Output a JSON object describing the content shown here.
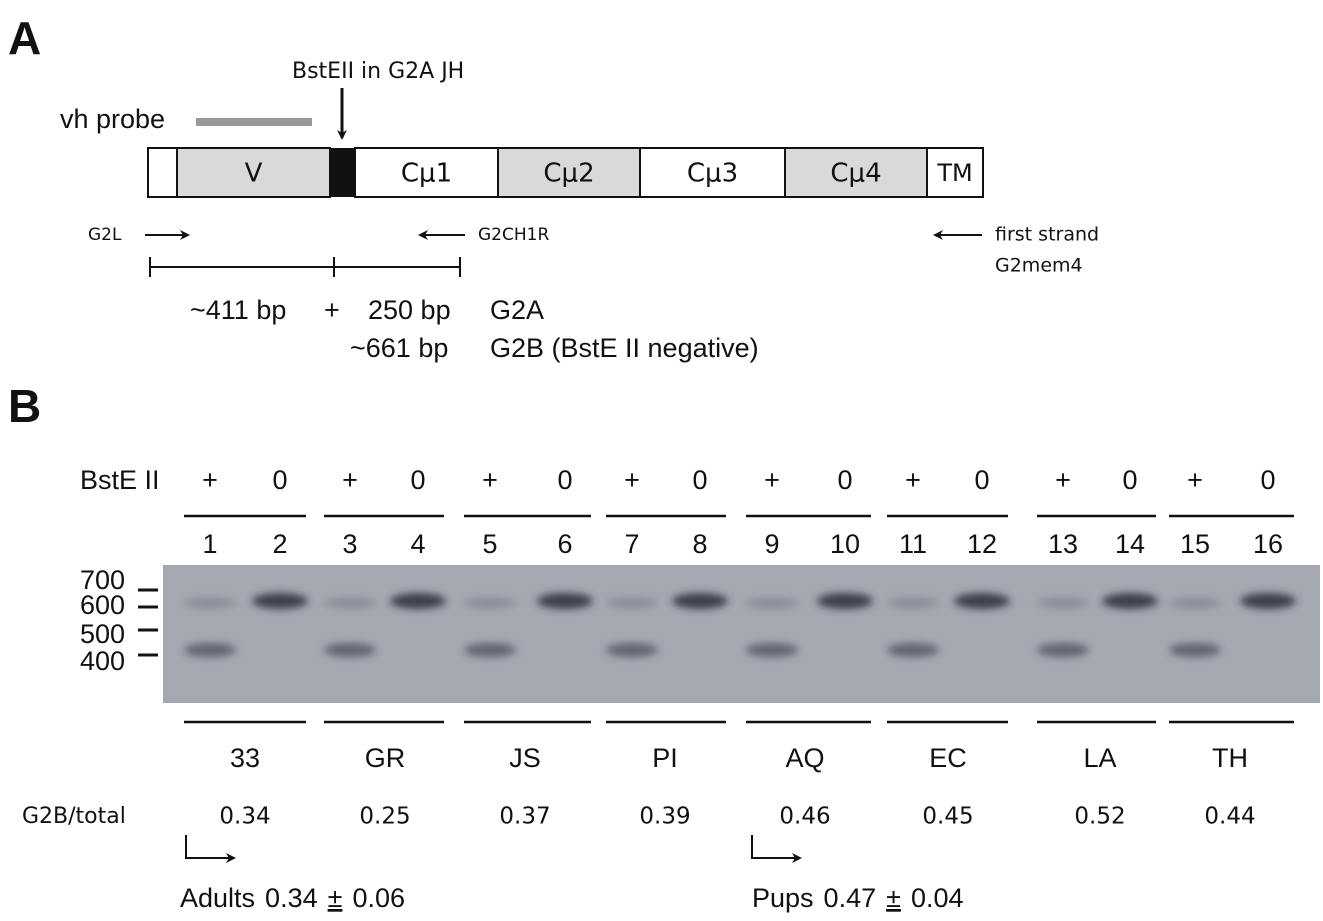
{
  "panel_a": {
    "label": "A",
    "site_label": "BstEII in G2A JH",
    "probe_label": "vh probe",
    "segments": [
      "V",
      "Cμ1",
      "Cμ2",
      "Cμ3",
      "Cμ4",
      "TM"
    ],
    "primers": {
      "forward": "G2L",
      "reverse": "G2CH1R",
      "first_strand": [
        "first strand",
        "G2mem4"
      ]
    },
    "sizes": {
      "left": "~411 bp",
      "plus": "+",
      "right": "250 bp",
      "g2a": "G2A",
      "full": "~661 bp",
      "g2b": "G2B (BstE II negative)"
    }
  },
  "panel_b": {
    "label": "B",
    "enzyme_label": "BstE II",
    "treatments": [
      "+",
      "0",
      "+",
      "0",
      "+",
      "0",
      "+",
      "0",
      "+",
      "0",
      "+",
      "0",
      "+",
      "0",
      "+",
      "0"
    ],
    "lanes": [
      1,
      2,
      3,
      4,
      5,
      6,
      7,
      8,
      9,
      10,
      11,
      12,
      13,
      14,
      15,
      16
    ],
    "markers": [
      700,
      600,
      500,
      400
    ],
    "samples": [
      "33",
      "GR",
      "JS",
      "PI",
      "AQ",
      "EC",
      "LA",
      "TH"
    ],
    "ratio_label": "G2B/total",
    "ratios": [
      0.34,
      0.25,
      0.37,
      0.39,
      0.46,
      0.45,
      0.52,
      0.44
    ],
    "summaries": [
      {
        "group": "Adults",
        "mean": 0.34,
        "sign": "±",
        "sd": 0.06
      },
      {
        "group": "Pups",
        "mean": 0.47,
        "sign": "±",
        "sd": 0.04
      }
    ]
  }
}
